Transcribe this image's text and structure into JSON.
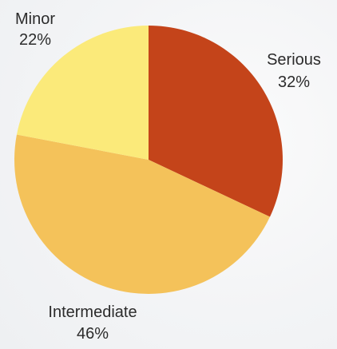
{
  "chart_data": {
    "type": "pie",
    "title": "",
    "slices": [
      {
        "label": "Serious",
        "value": 32,
        "value_label": "32%",
        "color": "#c4441a"
      },
      {
        "label": "Intermediate",
        "value": 46,
        "value_label": "46%",
        "color": "#f4c25a"
      },
      {
        "label": "Minor",
        "value": 22,
        "value_label": "22%",
        "color": "#fbea7a"
      }
    ],
    "start_angle_deg": 0,
    "direction": "clockwise",
    "legend": "none"
  }
}
